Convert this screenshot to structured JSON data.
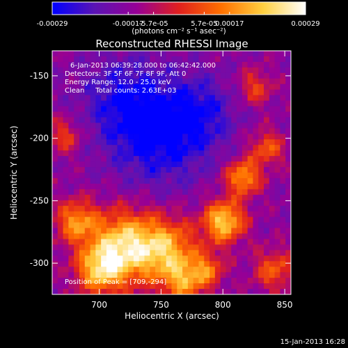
{
  "colorbar": {
    "ticks": [
      "-0.00029",
      "-0.00017",
      "-5.7e-05",
      "5.7e-05",
      "0.00017",
      "0.00029"
    ],
    "unit_label": "(photons cm⁻² s⁻¹ asec⁻²)",
    "stops": [
      "#0000ff",
      "#5a14b4",
      "#960096",
      "#e0201e",
      "#ff7000",
      "#ffd040",
      "#ffffff"
    ]
  },
  "plot": {
    "title": "Reconstructed RHESSI Image",
    "xlabel": "Heliocentric X (arcsec)",
    "ylabel": "Heliocentric Y (arcsec)",
    "x_ticks": [
      "700",
      "750",
      "800",
      "850"
    ],
    "y_ticks": [
      "-150",
      "-200",
      "-250",
      "-300"
    ],
    "xlim": [
      662,
      855
    ],
    "ylim": [
      -325,
      -130
    ]
  },
  "annotations": {
    "time_range": "6-Jan-2013 06:39:28.000 to 06:42:42.000",
    "detectors": "Detectors: 3F 5F 6F 7F 8F 9F, Att 0",
    "energy": "Energy Range: 12.0 - 25.0 keV",
    "method": "Clean     Total counts: 2.63E+03",
    "peak": "Position of Peak = [709,-294]"
  },
  "footer": {
    "timestamp": "15-Jan-2013 16:28"
  }
}
